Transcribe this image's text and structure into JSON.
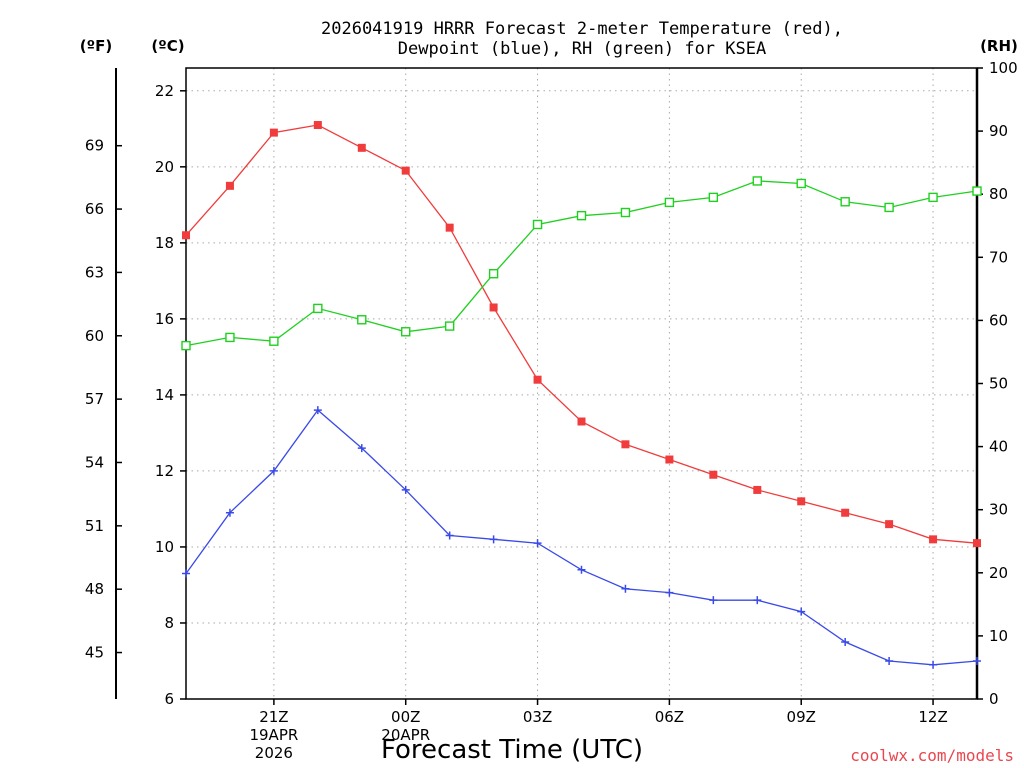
{
  "chart_data": {
    "type": "line",
    "title_line1": "2026041919 HRRR Forecast 2-meter Temperature (red),",
    "title_line2": "Dewpoint (blue), RH (green) for KSEA",
    "xlabel": "Forecast Time (UTC)",
    "credit": "coolwx.com/models",
    "unit_left_f": "(ºF)",
    "unit_left_c": "(ºC)",
    "unit_right": "(RH)",
    "x_hours": [
      19,
      20,
      21,
      22,
      23,
      24,
      25,
      26,
      27,
      28,
      29,
      30,
      31,
      32,
      33,
      34,
      35,
      36,
      37
    ],
    "xlim": [
      19,
      37
    ],
    "x_ticks": [
      {
        "hour": 21,
        "lines": [
          "21Z",
          "19APR",
          "2026"
        ]
      },
      {
        "hour": 24,
        "lines": [
          "00Z",
          "20APR"
        ]
      },
      {
        "hour": 27,
        "lines": [
          "03Z"
        ]
      },
      {
        "hour": 30,
        "lines": [
          "06Z"
        ]
      },
      {
        "hour": 33,
        "lines": [
          "09Z"
        ]
      },
      {
        "hour": 36,
        "lines": [
          "12Z"
        ]
      }
    ],
    "ylim_c": [
      6,
      22.6
    ],
    "yticks_c": [
      "6",
      "8",
      "10",
      "12",
      "14",
      "16",
      "18",
      "20",
      "22"
    ],
    "yticks_f": [
      "45",
      "48",
      "51",
      "54",
      "57",
      "60",
      "63",
      "66",
      "69"
    ],
    "ylim_rh": [
      0,
      100
    ],
    "yticks_rh": [
      "0",
      "10",
      "20",
      "30",
      "40",
      "50",
      "60",
      "70",
      "80",
      "90",
      "100"
    ],
    "series": [
      {
        "name": "Temperature",
        "unit": "C",
        "color": "#f03c3c",
        "marker": "filled-square",
        "values": [
          18.2,
          19.5,
          20.9,
          21.1,
          20.5,
          19.9,
          18.4,
          16.3,
          14.4,
          13.3,
          12.7,
          12.3,
          11.9,
          11.5,
          11.2,
          10.9,
          10.6,
          10.2,
          10.1
        ]
      },
      {
        "name": "Dewpoint",
        "unit": "C",
        "color": "#3a4ae8",
        "marker": "plus",
        "values": [
          9.3,
          10.9,
          12.0,
          13.6,
          12.6,
          11.5,
          10.3,
          10.2,
          10.1,
          9.4,
          8.9,
          8.8,
          8.6,
          8.6,
          8.3,
          7.5,
          7.0,
          6.9,
          7.0
        ]
      },
      {
        "name": "RH",
        "unit": "%",
        "color": "#20d020",
        "marker": "open-square",
        "values": [
          56,
          57.3,
          56.7,
          61.9,
          60.1,
          58.2,
          59.1,
          67.4,
          75.2,
          76.6,
          77.1,
          78.7,
          79.5,
          82.1,
          81.7,
          78.8,
          77.9,
          79.5,
          80.5
        ]
      }
    ]
  }
}
